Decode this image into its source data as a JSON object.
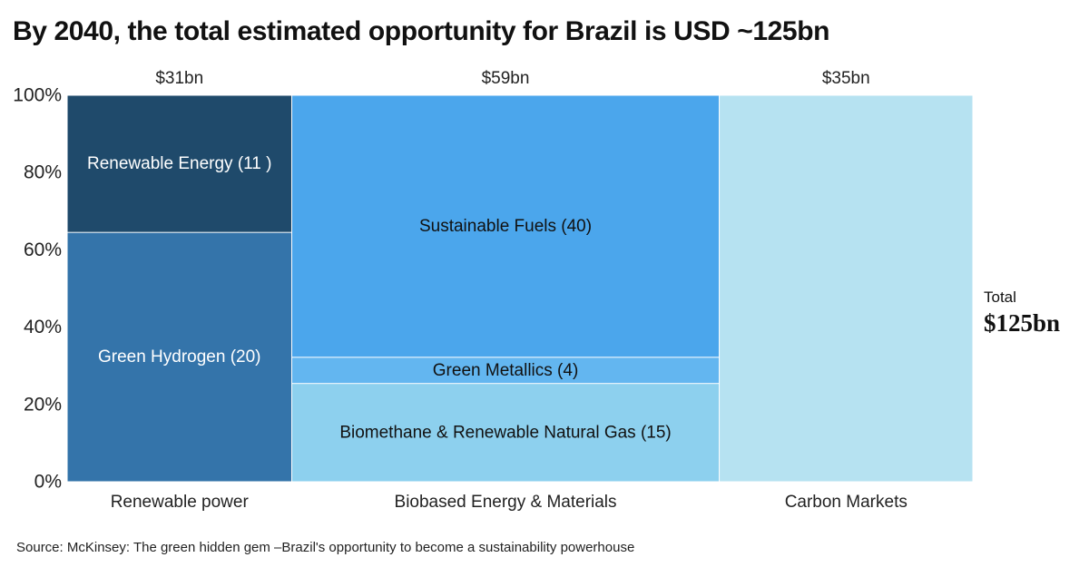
{
  "title": "By 2040, the total estimated opportunity for Brazil is USD ~125bn",
  "source": "Source: McKinsey: The green hidden gem –Brazil's opportunity to become a sustainability powerhouse",
  "total": {
    "label": "Total",
    "value": "$125bn"
  },
  "chart_data": {
    "type": "marimekko",
    "title": "By 2040, the total estimated opportunity for Brazil is USD ~125bn",
    "unit": "USD bn",
    "ylim": [
      0,
      100
    ],
    "yticks": [
      "0%",
      "20%",
      "40%",
      "60%",
      "80%",
      "100%"
    ],
    "grid": false,
    "columns": [
      {
        "name": "Renewable power",
        "total": 31,
        "total_label": "$31bn",
        "segments": [
          {
            "label": "Green Hydrogen (20)",
            "value": 20,
            "color": "#3474aa",
            "text_color": "#ffffff"
          },
          {
            "label": "Renewable Energy (11 )",
            "value": 11,
            "color": "#1f4a6b",
            "text_color": "#ffffff"
          }
        ]
      },
      {
        "name": "Biobased Energy & Materials",
        "total": 59,
        "total_label": "$59bn",
        "segments": [
          {
            "label": "Biomethane & Renewable Natural Gas (15)",
            "value": 15,
            "color": "#8dd0ee",
            "text_color": "#111111"
          },
          {
            "label": "Green Metallics (4)",
            "value": 4,
            "color": "#63b6f0",
            "text_color": "#111111"
          },
          {
            "label": "Sustainable Fuels (40)",
            "value": 40,
            "color": "#4ba6ec",
            "text_color": "#111111"
          }
        ]
      },
      {
        "name": "Carbon Markets",
        "total": 35,
        "total_label": "$35bn",
        "segments": [
          {
            "label": "",
            "value": 35,
            "color": "#b6e2f1",
            "text_color": "#111111"
          }
        ]
      }
    ]
  }
}
